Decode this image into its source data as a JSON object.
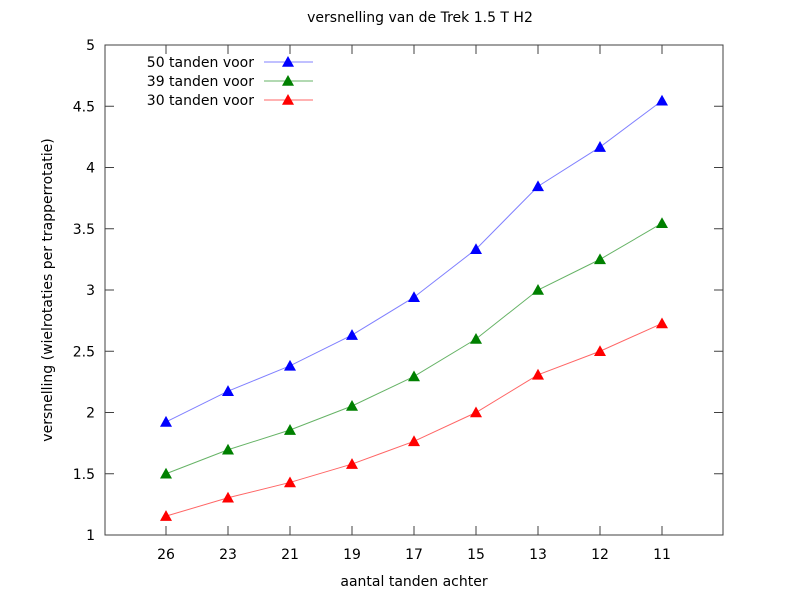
{
  "chart_data": {
    "type": "line",
    "title": "versnelling van de Trek 1.5 T H2",
    "xlabel": "aantal tanden achter",
    "ylabel": "versnelling (wielrotaties per trapperrotatie)",
    "categories": [
      "26",
      "23",
      "21",
      "19",
      "17",
      "15",
      "13",
      "12",
      "11"
    ],
    "ylim": [
      1,
      5
    ],
    "yticks": [
      "1",
      "1.5",
      "2",
      "2.5",
      "3",
      "3.5",
      "4",
      "4.5",
      "5"
    ],
    "grid": false,
    "legend_position": "top-left",
    "marker": "triangle",
    "series": [
      {
        "name": "50 tanden voor",
        "color": "#0000ff",
        "line_color": "#8080ff",
        "values": [
          1.923,
          2.174,
          2.381,
          2.632,
          2.941,
          3.333,
          3.846,
          4.167,
          4.545
        ]
      },
      {
        "name": "39 tanden voor",
        "color": "#008000",
        "line_color": "#66b366",
        "values": [
          1.5,
          1.696,
          1.857,
          2.053,
          2.294,
          2.6,
          3.0,
          3.25,
          3.545
        ]
      },
      {
        "name": "30 tanden voor",
        "color": "#ff0000",
        "line_color": "#ff6666",
        "values": [
          1.154,
          1.304,
          1.429,
          1.579,
          1.765,
          2.0,
          2.308,
          2.5,
          2.727
        ]
      }
    ]
  }
}
